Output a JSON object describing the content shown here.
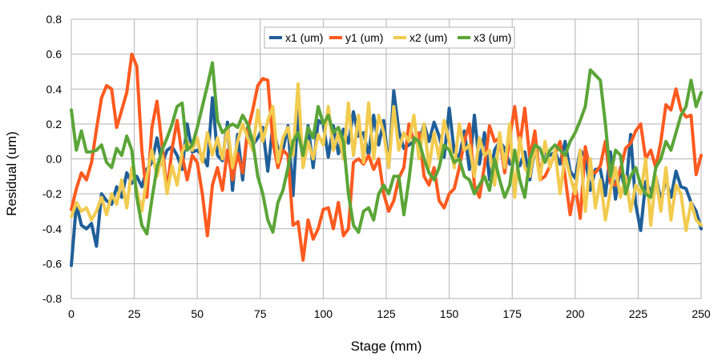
{
  "chart_data": {
    "type": "line",
    "title": "",
    "xlabel": "Stage (mm)",
    "ylabel": "Residual (um)",
    "xlim": [
      0,
      250
    ],
    "ylim": [
      -0.8,
      0.8
    ],
    "xticks": [
      0,
      25,
      50,
      75,
      100,
      125,
      150,
      175,
      200,
      225,
      250
    ],
    "yticks": [
      -0.8,
      -0.6,
      -0.4,
      -0.2,
      0.0,
      0.2,
      0.4,
      0.6,
      0.8
    ],
    "ytick_labels": [
      "-0.8",
      "-0.6",
      "-0.4",
      "-0.2",
      "0.0",
      "0.2",
      "0.4",
      "0.6",
      "0.8"
    ],
    "grid": true,
    "legend_position": "top-center",
    "series": [
      {
        "name": "x1 (um)",
        "color": "#1f5f99",
        "x": [
          0,
          2,
          4,
          6,
          8,
          10,
          12,
          14,
          16,
          18,
          20,
          22,
          24,
          26,
          28,
          30,
          32,
          34,
          36,
          38,
          40,
          42,
          44,
          46,
          48,
          50,
          52,
          54,
          56,
          58,
          60,
          62,
          64,
          66,
          68,
          70,
          72,
          74,
          76,
          78,
          80,
          82,
          84,
          86,
          88,
          90,
          92,
          94,
          96,
          98,
          100,
          102,
          104,
          106,
          108,
          110,
          112,
          114,
          116,
          118,
          120,
          122,
          124,
          126,
          128,
          130,
          132,
          134,
          136,
          138,
          140,
          142,
          144,
          146,
          148,
          150,
          152,
          154,
          156,
          158,
          160,
          162,
          164,
          166,
          168,
          170,
          172,
          174,
          176,
          178,
          180,
          182,
          184,
          186,
          188,
          190,
          192,
          194,
          196,
          198,
          200,
          202,
          204,
          206,
          208,
          210,
          212,
          214,
          216,
          218,
          220,
          222,
          224,
          226,
          228,
          230,
          232,
          234,
          236,
          238,
          240,
          242,
          244,
          246,
          248,
          250
        ],
        "values": [
          -0.61,
          -0.26,
          -0.38,
          -0.4,
          -0.37,
          -0.5,
          -0.2,
          -0.24,
          -0.26,
          -0.16,
          -0.22,
          -0.08,
          -0.14,
          -0.1,
          -0.16,
          -0.06,
          -0.02,
          0.12,
          -0.03,
          0.05,
          0.07,
          0.02,
          -0.06,
          0.2,
          0.04,
          0.05,
          0.02,
          -0.04,
          0.35,
          0.02,
          -0.01,
          0.21,
          -0.18,
          0.14,
          -0.12,
          0.18,
          0.08,
          0.12,
          0.18,
          -0.07,
          0.19,
          0.06,
          0.05,
          0.19,
          -0.21,
          0.28,
          -0.03,
          0.19,
          -0.05,
          0.22,
          0.2,
          0.01,
          0.19,
          0.03,
          0.17,
          0.09,
          0.27,
          0.13,
          0.15,
          0.02,
          0.25,
          0.08,
          0.22,
          -0.05,
          0.39,
          0.16,
          0.06,
          0.08,
          0.1,
          0.09,
          0.2,
          0.1,
          0.21,
          0.13,
          0.01,
          0.29,
          0.04,
          0.01,
          0.16,
          -0.06,
          0.25,
          -0.03,
          0.15,
          -0.12,
          0.05,
          0.1,
          0.06,
          -0.03,
          0.02,
          -0.04,
          0.04,
          -0.12,
          0.07,
          -0.08,
          0.05,
          0.02,
          0.04,
          -0.03,
          0.1,
          -0.07,
          -0.11,
          0.05,
          0.01,
          -0.18,
          -0.06,
          -0.06,
          -0.21,
          0.04,
          -0.23,
          -0.05,
          -0.2,
          0.14,
          -0.26,
          -0.41,
          -0.13,
          -0.19,
          -0.1,
          -0.24,
          -0.12,
          -0.22,
          -0.07,
          -0.16,
          -0.17,
          -0.25,
          -0.3,
          -0.4
        ]
      },
      {
        "name": "y1 (um)",
        "color": "#ff5a1f",
        "x": [
          0,
          2,
          4,
          6,
          8,
          10,
          12,
          14,
          16,
          18,
          20,
          22,
          24,
          26,
          28,
          30,
          32,
          34,
          36,
          38,
          40,
          42,
          44,
          46,
          48,
          50,
          52,
          54,
          56,
          58,
          60,
          62,
          64,
          66,
          68,
          70,
          72,
          74,
          76,
          78,
          80,
          82,
          84,
          86,
          88,
          90,
          92,
          94,
          96,
          98,
          100,
          102,
          104,
          106,
          108,
          110,
          112,
          114,
          116,
          118,
          120,
          122,
          124,
          126,
          128,
          130,
          132,
          134,
          136,
          138,
          140,
          142,
          144,
          146,
          148,
          150,
          152,
          154,
          156,
          158,
          160,
          162,
          164,
          166,
          168,
          170,
          172,
          174,
          176,
          178,
          180,
          182,
          184,
          186,
          188,
          190,
          192,
          194,
          196,
          198,
          200,
          202,
          204,
          206,
          208,
          210,
          212,
          214,
          216,
          218,
          220,
          222,
          224,
          226,
          228,
          230,
          232,
          234,
          236,
          238,
          240,
          242,
          244,
          246,
          248,
          250
        ],
        "values": [
          -0.29,
          -0.17,
          -0.08,
          -0.12,
          -0.02,
          0.17,
          0.35,
          0.42,
          0.4,
          0.18,
          0.28,
          0.38,
          0.6,
          0.53,
          0.05,
          -0.22,
          0.18,
          0.33,
          0.08,
          -0.18,
          0.06,
          0.22,
          0.02,
          -0.12,
          0.02,
          -0.02,
          -0.2,
          -0.44,
          -0.15,
          -0.05,
          -0.18,
          0.05,
          -0.12,
          0.03,
          -0.08,
          0.16,
          0.28,
          0.42,
          0.46,
          0.45,
          0.1,
          -0.05,
          0.05,
          0.02,
          -0.38,
          -0.36,
          -0.58,
          -0.35,
          -0.46,
          -0.4,
          -0.29,
          -0.28,
          -0.4,
          -0.25,
          -0.44,
          -0.4,
          -0.02,
          0.0,
          -0.03,
          0.02,
          -0.06,
          0.0,
          -0.2,
          -0.3,
          -0.24,
          -0.11,
          -0.05,
          0.2,
          0.1,
          0.15,
          -0.1,
          -0.15,
          -0.05,
          -0.24,
          -0.28,
          -0.2,
          -0.17,
          -0.05,
          0.1,
          0.2,
          -0.15,
          -0.22,
          -0.04,
          0.19,
          0.1,
          0.12,
          -0.08,
          0.12,
          0.3,
          0.08,
          0.29,
          0.0,
          0.16,
          -0.12,
          -0.1,
          -0.04,
          0.03,
          0.1,
          -0.1,
          -0.32,
          -0.15,
          -0.34,
          0.07,
          -0.07,
          -0.08,
          -0.04,
          0.1,
          -0.14,
          -0.15,
          -0.06,
          0.06,
          0.09,
          0.16,
          0.2,
          0.0,
          0.05,
          -0.05,
          0.1,
          0.31,
          0.28,
          0.4,
          0.28,
          0.24,
          0.25,
          -0.09,
          0.02
        ]
      },
      {
        "name": "x2 (um)",
        "color": "#f2cb4f",
        "x": [
          0,
          2,
          4,
          6,
          8,
          10,
          12,
          14,
          16,
          18,
          20,
          22,
          24,
          26,
          28,
          30,
          32,
          34,
          36,
          38,
          40,
          42,
          44,
          46,
          48,
          50,
          52,
          54,
          56,
          58,
          60,
          62,
          64,
          66,
          68,
          70,
          72,
          74,
          76,
          78,
          80,
          82,
          84,
          86,
          88,
          90,
          92,
          94,
          96,
          98,
          100,
          102,
          104,
          106,
          108,
          110,
          112,
          114,
          116,
          118,
          120,
          122,
          124,
          126,
          128,
          130,
          132,
          134,
          136,
          138,
          140,
          142,
          144,
          146,
          148,
          150,
          152,
          154,
          156,
          158,
          160,
          162,
          164,
          166,
          168,
          170,
          172,
          174,
          176,
          178,
          180,
          182,
          184,
          186,
          188,
          190,
          192,
          194,
          196,
          198,
          200,
          202,
          204,
          206,
          208,
          210,
          212,
          214,
          216,
          218,
          220,
          222,
          224,
          226,
          228,
          230,
          232,
          234,
          236,
          238,
          240,
          242,
          244,
          246,
          248,
          250
        ],
        "values": [
          -0.33,
          -0.25,
          -0.3,
          -0.28,
          -0.35,
          -0.3,
          -0.22,
          -0.32,
          -0.2,
          -0.26,
          -0.12,
          -0.28,
          -0.05,
          -0.18,
          -0.3,
          -0.1,
          0.05,
          -0.1,
          0.02,
          -0.2,
          -0.04,
          -0.15,
          0.04,
          0.1,
          0.05,
          0.12,
          -0.02,
          0.15,
          0.02,
          0.12,
          0.0,
          0.18,
          -0.05,
          0.1,
          0.2,
          0.12,
          0.05,
          0.28,
          0.1,
          0.22,
          0.3,
          -0.02,
          0.12,
          0.18,
          0.02,
          0.43,
          -0.05,
          0.1,
          0.0,
          0.14,
          0.08,
          0.3,
          0.05,
          0.15,
          0.0,
          0.32,
          0.02,
          0.25,
          -0.02,
          0.32,
          0.0,
          0.25,
          0.15,
          -0.05,
          0.3,
          0.05,
          0.15,
          0.1,
          0.25,
          0.0,
          0.2,
          -0.05,
          0.15,
          0.0,
          0.22,
          0.1,
          -0.05,
          0.2,
          0.05,
          0.08,
          -0.1,
          0.12,
          0.02,
          0.05,
          -0.15,
          0.15,
          -0.05,
          0.2,
          -0.22,
          0.12,
          -0.05,
          -0.1,
          0.08,
          -0.12,
          0.1,
          -0.05,
          0.05,
          -0.2,
          0.02,
          -0.1,
          -0.2,
          0.05,
          -0.3,
          0.0,
          -0.28,
          -0.12,
          -0.35,
          -0.18,
          -0.05,
          -0.22,
          -0.1,
          -0.3,
          -0.15,
          -0.2,
          0.0,
          -0.38,
          -0.1,
          -0.3,
          -0.05,
          -0.35,
          -0.15,
          -0.2,
          -0.41,
          -0.25,
          -0.35,
          -0.38
        ]
      },
      {
        "name": "x3 (um)",
        "color": "#5aa537",
        "x": [
          0,
          2,
          4,
          6,
          8,
          10,
          12,
          14,
          16,
          18,
          20,
          22,
          24,
          26,
          28,
          30,
          32,
          34,
          36,
          38,
          40,
          42,
          44,
          46,
          48,
          50,
          52,
          54,
          56,
          58,
          60,
          62,
          64,
          66,
          68,
          70,
          72,
          74,
          76,
          78,
          80,
          82,
          84,
          86,
          88,
          90,
          92,
          94,
          96,
          98,
          100,
          102,
          104,
          106,
          108,
          110,
          112,
          114,
          116,
          118,
          120,
          122,
          124,
          126,
          128,
          130,
          132,
          134,
          136,
          138,
          140,
          142,
          144,
          146,
          148,
          150,
          152,
          154,
          156,
          158,
          160,
          162,
          164,
          166,
          168,
          170,
          172,
          174,
          176,
          178,
          180,
          182,
          184,
          186,
          188,
          190,
          192,
          194,
          196,
          198,
          200,
          202,
          204,
          206,
          208,
          210,
          212,
          214,
          216,
          218,
          220,
          222,
          224,
          226,
          228,
          230,
          232,
          234,
          236,
          238,
          240,
          242,
          244,
          246,
          248,
          250
        ],
        "values": [
          0.28,
          0.05,
          0.16,
          0.04,
          0.04,
          0.05,
          0.08,
          -0.02,
          -0.05,
          0.06,
          0.02,
          0.13,
          0.05,
          -0.22,
          -0.38,
          -0.43,
          -0.23,
          -0.05,
          0.05,
          0.12,
          0.2,
          0.3,
          0.32,
          0.05,
          0.08,
          0.18,
          0.3,
          0.42,
          0.55,
          0.22,
          0.15,
          0.18,
          0.2,
          0.18,
          0.25,
          0.2,
          0.1,
          -0.1,
          -0.2,
          -0.35,
          -0.42,
          -0.25,
          -0.18,
          -0.05,
          0.1,
          0.15,
          0.02,
          0.18,
          0.12,
          0.3,
          0.2,
          0.25,
          0.15,
          0.18,
          0.1,
          -0.2,
          -0.38,
          -0.42,
          -0.3,
          -0.28,
          -0.35,
          -0.2,
          -0.15,
          -0.2,
          -0.1,
          -0.1,
          -0.32,
          -0.12,
          0.12,
          0.1,
          0.0,
          -0.08,
          -0.12,
          -0.05,
          0.08,
          0.05,
          -0.02,
          0.0,
          -0.1,
          -0.12,
          -0.2,
          -0.15,
          -0.1,
          -0.18,
          0.0,
          -0.12,
          -0.22,
          -0.15,
          0.05,
          -0.12,
          -0.22,
          0.0,
          0.08,
          0.06,
          -0.02,
          0.05,
          0.08,
          0.05,
          0.02,
          0.1,
          0.15,
          0.22,
          0.3,
          0.51,
          0.48,
          0.45,
          0.2,
          -0.1,
          0.05,
          0.02,
          -0.2,
          -0.1,
          -0.05,
          -0.15,
          -0.2,
          -0.22,
          -0.05,
          0.0,
          0.1,
          0.05,
          0.15,
          0.25,
          0.3,
          0.45,
          0.3,
          0.38
        ]
      }
    ]
  }
}
